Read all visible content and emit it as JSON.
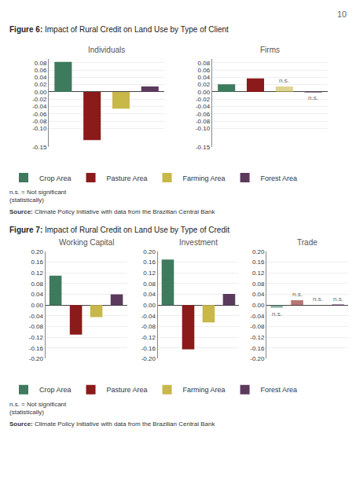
{
  "chart_data": [
    {
      "type": "bar",
      "subtitle": "Figure 6: Impact of Rural Credit on Land Use by Type of Client",
      "title": "Individuals",
      "series": [
        {
          "name": "Crop Area",
          "color": "#3d7a5e",
          "values": [
            0.082
          ]
        },
        {
          "name": "Pasture Area",
          "color": "#8b1a1a",
          "values": [
            -0.132
          ]
        },
        {
          "name": "Farming Area",
          "color": "#c8b84a",
          "values": [
            -0.046
          ]
        },
        {
          "name": "Forest Area",
          "color": "#5c3a5c",
          "values": [
            0.015
          ]
        }
      ],
      "ylim": [
        -0.15,
        0.09
      ],
      "yticks": [
        -0.15,
        {
          "value": -0.1,
          "label": "-0.10"
        },
        -0.08,
        -0.06,
        -0.04,
        -0.02,
        {
          "value": 0,
          "label": "0.00"
        },
        0.02,
        0.04,
        0.06,
        0.08
      ],
      "grid": true,
      "tick_labels": "y",
      "legend": "bottom",
      "annotations": [
        "n.s. = Not significant\n(statistically)",
        "Source: Climate Policy Initiative with data from the Brazilian Central Bank",
        "10"
      ]
    },
    {
      "type": "bar",
      "title": "Firms",
      "series": [
        {
          "name": "Crop Area",
          "color": "#3d7a5e",
          "values": [
            0.021
          ]
        },
        {
          "name": "Pasture Area",
          "color": "#8b1a1a",
          "values": [
            0.037
          ]
        },
        {
          "name": "Farming Area",
          "color": "#c8b84a",
          "values": [
            0.015
          ]
        },
        {
          "name": "Forest Area",
          "color": "#5c3a5c",
          "values": [
            -0.001
          ]
        }
      ],
      "ylim": [
        -0.15,
        0.09
      ],
      "yticks": [
        -0.15,
        {
          "value": -0.1,
          "label": "-0.10"
        },
        -0.08,
        -0.06,
        -0.04,
        -0.02,
        {
          "value": 0,
          "label": "0.00"
        },
        0.02,
        0.04,
        0.06,
        0.08
      ],
      "grid": true,
      "tick_labels": "y",
      "annotations": [
        {
          "text": "n.s.",
          "series": "Farming Area"
        },
        {
          "text": "n.s.",
          "series": "Forest Area"
        }
      ]
    },
    {
      "type": "bar",
      "subtitle": "Figure 7: Impact of Rural Credit on Land Use by Type of Credit",
      "title": "Working Capital",
      "series": [
        {
          "name": "Crop Area",
          "color": "#3d7a5e",
          "values": [
            0.11
          ]
        },
        {
          "name": "Pasture Area",
          "color": "#8b1a1a",
          "values": [
            -0.11
          ]
        },
        {
          "name": "Farming Area",
          "color": "#c8b84a",
          "values": [
            -0.045
          ]
        },
        {
          "name": "Forest Area",
          "color": "#5c3a5c",
          "values": [
            0.04
          ]
        }
      ],
      "ylim": [
        -0.2,
        0.2
      ],
      "yticks": [
        {
          "value": -0.2,
          "label": "-0.20"
        },
        -0.16,
        -0.12,
        -0.08,
        -0.04,
        {
          "value": 0,
          "label": "0.00"
        },
        0.04,
        0.08,
        0.12,
        0.16,
        {
          "value": 0.2,
          "label": "0.20"
        }
      ],
      "grid": true,
      "tick_labels": "y",
      "legend": "bottom",
      "annotations": [
        "n.s. = Not significant\n(statistically)",
        "Source: Climate Policy Initiative with data from the Brazilian Central Bank"
      ]
    },
    {
      "type": "bar",
      "title": "Investment",
      "series": [
        {
          "name": "Crop Area",
          "color": "#3d7a5e",
          "values": [
            0.17
          ]
        },
        {
          "name": "Pasture Area",
          "color": "#8b1a1a",
          "values": [
            -0.165
          ]
        },
        {
          "name": "Farming Area",
          "color": "#c8b84a",
          "values": [
            -0.065
          ]
        },
        {
          "name": "Forest Area",
          "color": "#5c3a5c",
          "values": [
            0.042
          ]
        }
      ],
      "ylim": [
        -0.2,
        0.2
      ],
      "yticks": [
        {
          "value": -0.2,
          "label": "-0.20"
        },
        -0.16,
        -0.12,
        -0.08,
        -0.04,
        {
          "value": 0,
          "label": "0.00"
        },
        0.04,
        0.08,
        0.12,
        0.16,
        {
          "value": 0.2,
          "label": "0.20"
        }
      ],
      "grid": true,
      "tick_labels": "y"
    },
    {
      "type": "bar",
      "title": "Trade",
      "series": [
        {
          "name": "Crop Area",
          "color": "#3d7a5e",
          "values": [
            -0.01
          ]
        },
        {
          "name": "Pasture Area",
          "color": "#8b1a1a",
          "values": [
            0.018
          ]
        },
        {
          "name": "Farming Area",
          "color": "#c8b84a",
          "values": [
            0.0
          ]
        },
        {
          "name": "Forest Area",
          "color": "#5c3a5c",
          "values": [
            0.002
          ]
        }
      ],
      "ylim": [
        -0.2,
        0.2
      ],
      "yticks": [
        {
          "value": -0.2,
          "label": "-0.20"
        },
        -0.16,
        -0.12,
        -0.08,
        -0.04,
        {
          "value": 0,
          "label": "0.00"
        },
        0.04,
        0.08,
        0.12,
        0.16,
        {
          "value": 0.2,
          "label": "0.20"
        }
      ],
      "grid": true,
      "tick_labels": "y",
      "annotations": [
        {
          "text": "n.s.",
          "series": "Crop Area"
        },
        {
          "text": "n.s.",
          "series": "Pasture Area"
        },
        {
          "text": "n.s.",
          "series": "Farming Area"
        },
        {
          "text": "n.s.",
          "series": "Forest Area"
        }
      ]
    }
  ]
}
